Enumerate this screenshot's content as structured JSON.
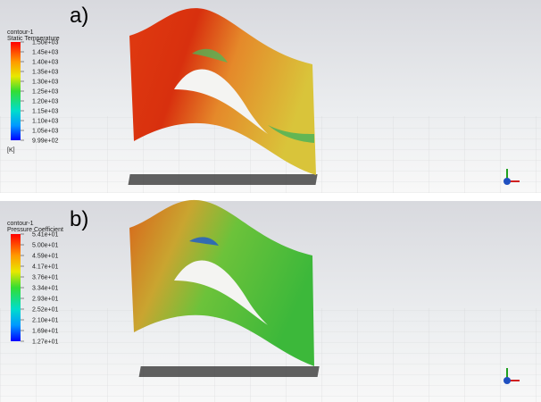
{
  "panels": [
    {
      "label": "a)",
      "legend": {
        "name": "contour-1",
        "title": "Static Temperature",
        "unit": "[K]",
        "ticks": [
          "1.50e+03",
          "1.45e+03",
          "1.40e+03",
          "1.35e+03",
          "1.30e+03",
          "1.25e+03",
          "1.20e+03",
          "1.15e+03",
          "1.10e+03",
          "1.05e+03",
          "9.99e+02"
        ]
      }
    },
    {
      "label": "b)",
      "legend": {
        "name": "contour-1",
        "title": "Pressure Coefficient",
        "ticks": [
          "5.41e+01",
          "5.00e+01",
          "4.59e+01",
          "4.17e+01",
          "3.76e+01",
          "3.34e+01",
          "2.93e+01",
          "2.52e+01",
          "2.10e+01",
          "1.69e+01",
          "1.27e+01"
        ]
      }
    }
  ]
}
